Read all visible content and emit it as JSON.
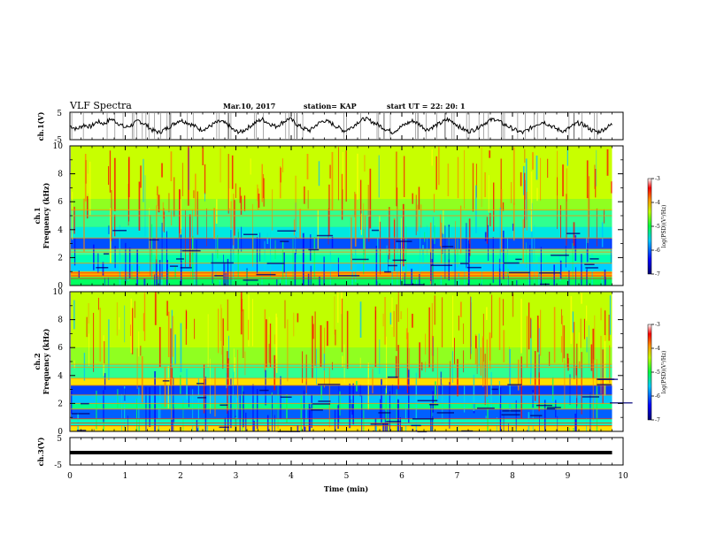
{
  "header": {
    "title": "VLF Spectra",
    "date": "Mar.10, 2017",
    "station": "station= KAP",
    "start": "start  UT  =   22: 20: 1"
  },
  "chart_data": [
    {
      "type": "line",
      "panel": "ch1-waveform",
      "ylabel": "ch.1(V)",
      "ylim": [
        -5,
        5
      ],
      "yticks": [
        "5",
        "-5"
      ],
      "x_range_min": [
        0,
        9.8
      ],
      "series": [
        {
          "points_y": [
            0.1,
            -1.2,
            0.4,
            -0.3,
            1.6,
            0.8,
            2.6,
            1.1,
            -0.6,
            0.3,
            1.9,
            0.6,
            -1.5,
            -2.4,
            -1.0,
            0.5,
            2.2,
            1.4,
            0.2,
            -1.3,
            -0.8,
            0.9,
            1.7,
            0.4,
            -1.9,
            -2.2,
            -0.5,
            1.2,
            2.5,
            1.0,
            -0.2,
            1.3,
            2.8,
            0.7,
            -0.9,
            -1.7,
            0.6,
            2.0,
            1.1,
            -0.4,
            -1.8,
            -0.6,
            1.5,
            2.7,
            1.6,
            0.3,
            -1.1,
            -2.3,
            -0.7,
            0.8,
            1.9,
            0.5,
            -1.4,
            -0.2,
            1.0,
            2.4,
            1.2,
            -0.8,
            -2.0,
            -1.3,
            0.4,
            1.8,
            2.6,
            0.9,
            -0.3,
            -1.6,
            -2.5,
            -1.0,
            0.7,
            1.5,
            0.2,
            -1.2,
            -1.9,
            -0.4,
            1.1,
            0.3,
            -1.5,
            -2.2,
            -0.9,
            0.6
          ]
        }
      ]
    },
    {
      "type": "heatmap",
      "panel": "ch1-spectrogram",
      "ylabel": "ch.1\nFrequency (kHz)",
      "ylim": [
        0,
        10
      ],
      "yticks": [
        "0",
        "2",
        "4",
        "6",
        "8",
        "10"
      ],
      "colorbar": {
        "label": "log(PSD)(V²/Hz)",
        "ticks": [
          "-3",
          "-4",
          "-5",
          "-6",
          "-7"
        ],
        "range": [
          -7,
          -3
        ]
      }
    },
    {
      "type": "heatmap",
      "panel": "ch2-spectrogram",
      "ylabel": "ch.2\nFrequency (kHz)",
      "ylim": [
        0,
        10
      ],
      "yticks": [
        "0",
        "2",
        "4",
        "6",
        "8",
        "10"
      ],
      "colorbar": {
        "label": "log(PSD)(V²/Hz)",
        "ticks": [
          "-3",
          "-4",
          "-5",
          "-6",
          "-7"
        ],
        "range": [
          -7,
          -3
        ]
      }
    },
    {
      "type": "line",
      "panel": "ch3-waveform",
      "ylabel": "ch.3(V)",
      "ylim": [
        -5,
        5
      ],
      "yticks": [
        "5",
        "-5"
      ],
      "series": [
        {
          "constant_y": -1.3,
          "x_range_min": [
            0,
            9.8
          ]
        }
      ]
    }
  ],
  "xaxis": {
    "label": "Time  (min)",
    "range": [
      0,
      10
    ],
    "ticks": [
      "0",
      "1",
      "2",
      "3",
      "4",
      "5",
      "6",
      "7",
      "8",
      "9",
      "10"
    ]
  },
  "colors": {
    "colormap": [
      "#00007a",
      "#0000ff",
      "#0080ff",
      "#00e0e0",
      "#00ff60",
      "#80ff00",
      "#ffff00",
      "#ff8000",
      "#ff0000",
      "#ffffff"
    ]
  }
}
